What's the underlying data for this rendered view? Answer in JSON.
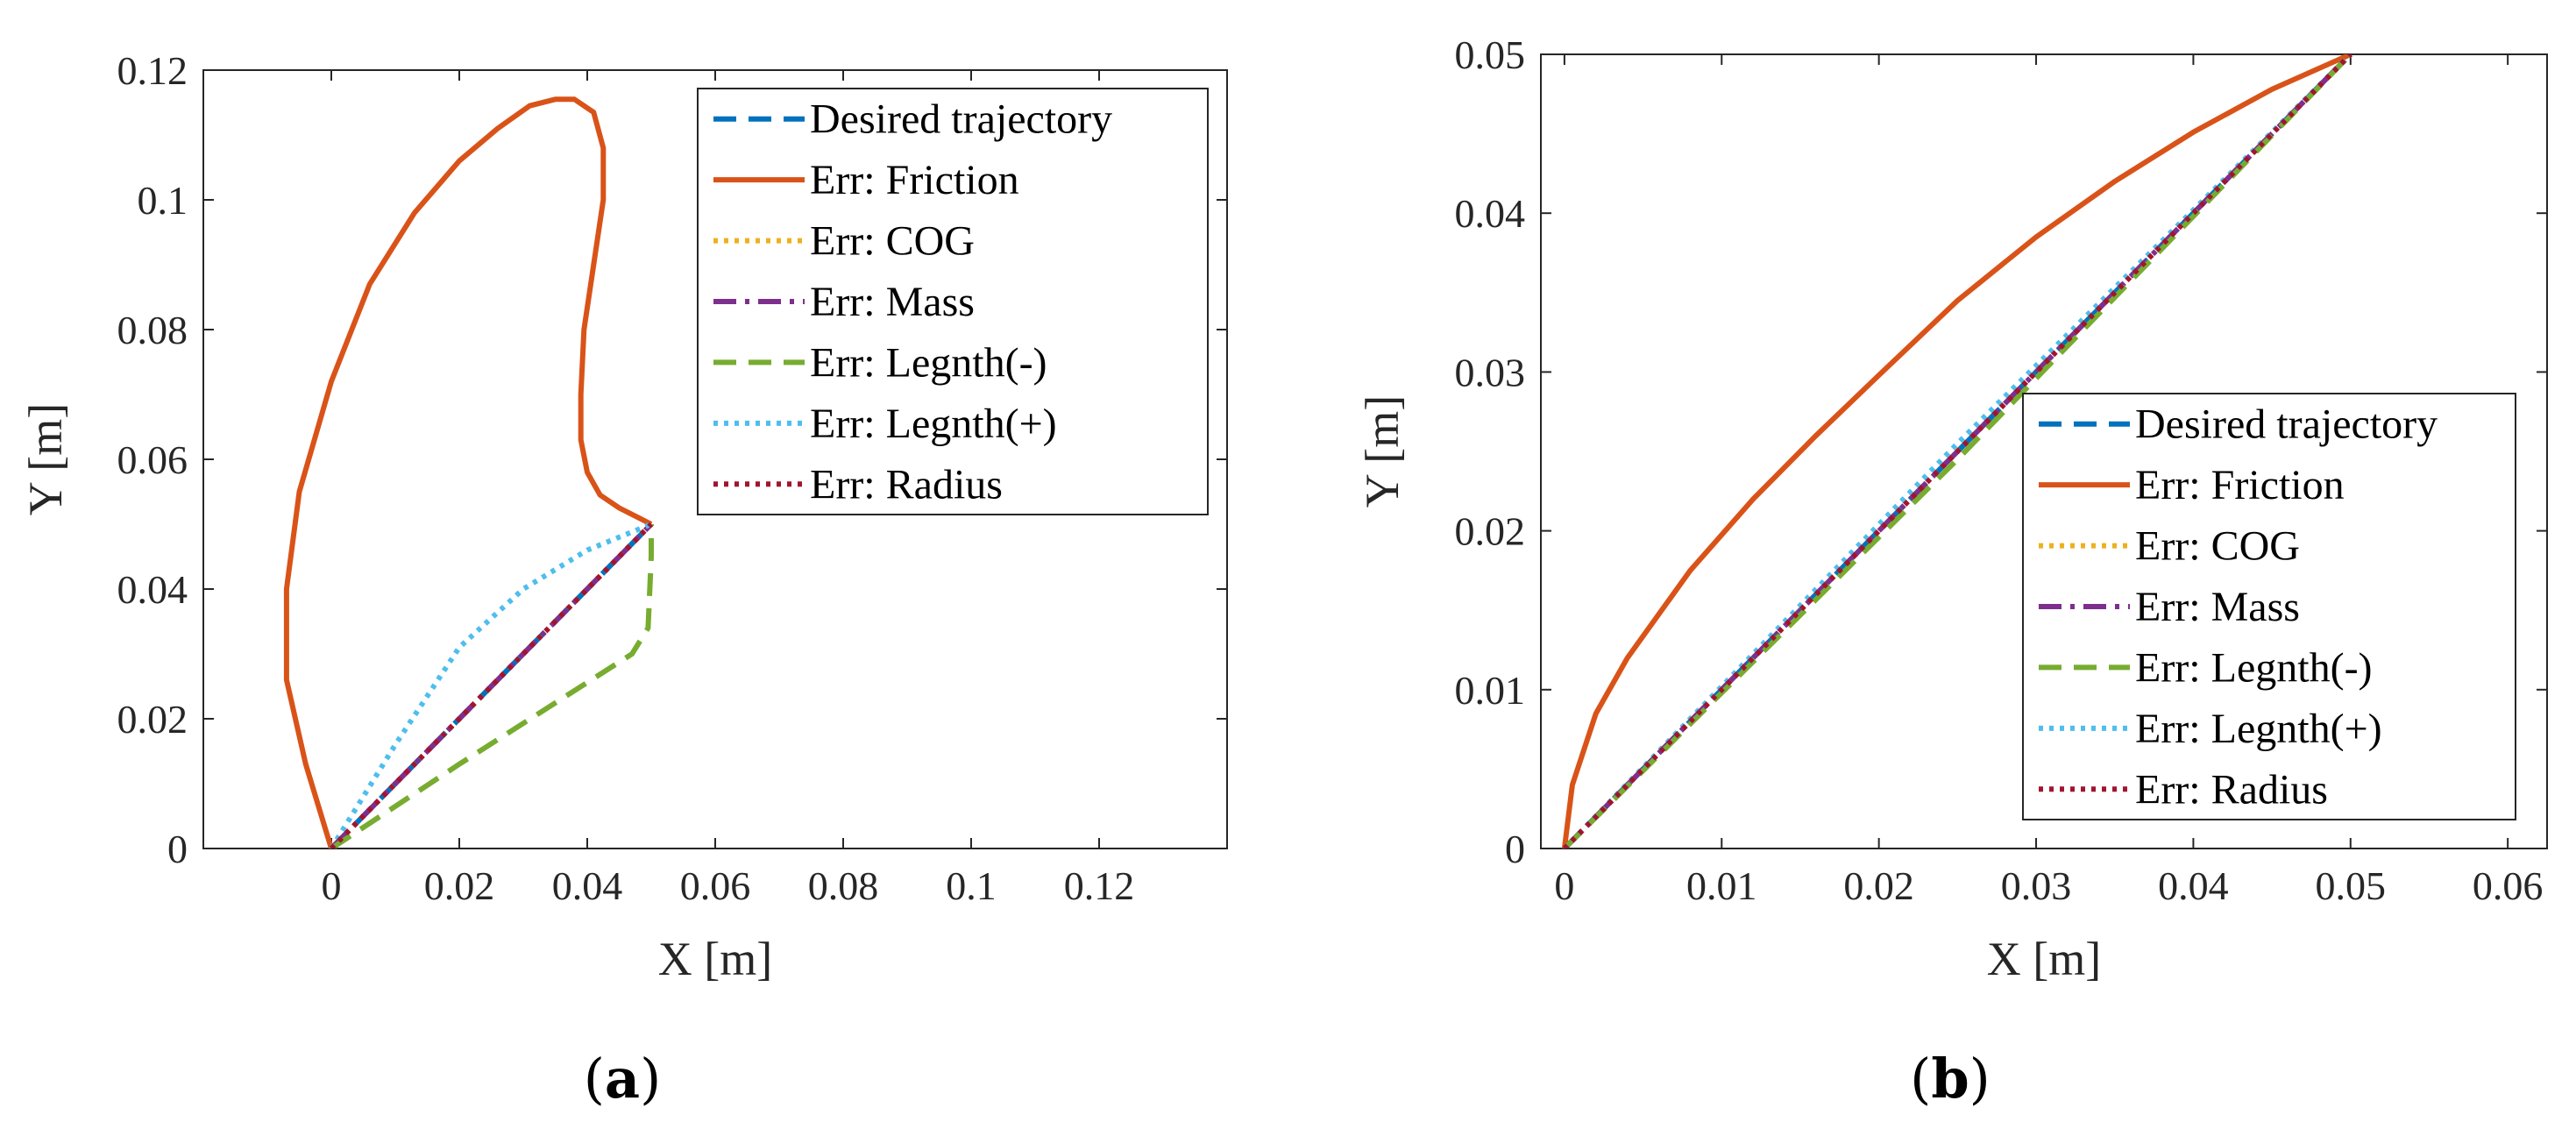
{
  "figure": {
    "captions": [
      "(a)",
      "(b)"
    ],
    "caption_letters": [
      "a",
      "b"
    ]
  },
  "colors": {
    "desired": "#0072BD",
    "friction": "#D95319",
    "cog": "#EDB120",
    "mass": "#7E2F8E",
    "length_minus": "#77AC30",
    "length_plus": "#4DBEEE",
    "radius": "#A2142F"
  },
  "chart_data": [
    {
      "type": "line",
      "panel": "a",
      "xlabel": "X [m]",
      "ylabel": "Y [m]",
      "xlim": [
        -0.02,
        0.14
      ],
      "ylim": [
        0,
        0.12
      ],
      "xticks": [
        0,
        0.02,
        0.04,
        0.06,
        0.08,
        0.1,
        0.12
      ],
      "xtick_labels": [
        "0",
        "0.02",
        "0.04",
        "0.06",
        "0.08",
        "0.1",
        "0.12"
      ],
      "yticks": [
        0,
        0.02,
        0.04,
        0.06,
        0.08,
        0.1,
        0.12
      ],
      "ytick_labels": [
        "0",
        "0.02",
        "0.04",
        "0.06",
        "0.08",
        "0.1",
        "0.12"
      ],
      "legend_position": "top-right",
      "series": [
        {
          "name": "Desired trajectory",
          "style": "dashed",
          "color": "#0072BD",
          "x": [
            0,
            0.05
          ],
          "y": [
            0,
            0.05
          ]
        },
        {
          "name": "Err: Friction",
          "style": "solid",
          "color": "#D95319",
          "x": [
            0,
            -0.004,
            -0.007,
            -0.007,
            -0.005,
            0,
            0.006,
            0.013,
            0.02,
            0.026,
            0.031,
            0.035,
            0.038,
            0.041,
            0.0425,
            0.0425,
            0.041,
            0.0395,
            0.039,
            0.039,
            0.04,
            0.042,
            0.045,
            0.048,
            0.05
          ],
          "y": [
            0,
            0.013,
            0.026,
            0.04,
            0.055,
            0.072,
            0.087,
            0.098,
            0.106,
            0.111,
            0.1145,
            0.1155,
            0.1155,
            0.1135,
            0.108,
            0.1,
            0.09,
            0.08,
            0.07,
            0.063,
            0.058,
            0.0545,
            0.0525,
            0.051,
            0.05
          ]
        },
        {
          "name": "Err: COG",
          "style": "dotted",
          "color": "#EDB120",
          "x": [
            0,
            0.05
          ],
          "y": [
            0,
            0.05
          ]
        },
        {
          "name": "Err: Mass",
          "style": "dashdot",
          "color": "#7E2F8E",
          "x": [
            0,
            0.05
          ],
          "y": [
            0,
            0.05
          ]
        },
        {
          "name": "Err: Legnth(-)",
          "style": "dashed",
          "color": "#77AC30",
          "x": [
            0,
            0.02,
            0.047,
            0.0495,
            0.05,
            0.05
          ],
          "y": [
            0,
            0.013,
            0.03,
            0.034,
            0.045,
            0.05
          ]
        },
        {
          "name": "Err: Legnth(+)",
          "style": "dotted",
          "color": "#4DBEEE",
          "x": [
            0,
            0.01,
            0.02,
            0.03,
            0.04,
            0.05
          ],
          "y": [
            0,
            0.016,
            0.031,
            0.04,
            0.046,
            0.05
          ]
        },
        {
          "name": "Err: Radius",
          "style": "dotted",
          "color": "#A2142F",
          "x": [
            0,
            0.05
          ],
          "y": [
            0,
            0.05
          ]
        }
      ]
    },
    {
      "type": "line",
      "panel": "b",
      "xlabel": "X [m]",
      "ylabel": "Y [m]",
      "xlim": [
        -0.0015,
        0.0625
      ],
      "ylim": [
        0,
        0.05
      ],
      "xticks": [
        0,
        0.01,
        0.02,
        0.03,
        0.04,
        0.05,
        0.06
      ],
      "xtick_labels": [
        "0",
        "0.01",
        "0.02",
        "0.03",
        "0.04",
        "0.05",
        "0.06"
      ],
      "yticks": [
        0,
        0.01,
        0.02,
        0.03,
        0.04,
        0.05
      ],
      "ytick_labels": [
        "0",
        "0.01",
        "0.02",
        "0.03",
        "0.04",
        "0.05"
      ],
      "legend_position": "bottom-right",
      "series": [
        {
          "name": "Desired trajectory",
          "style": "dashed",
          "color": "#0072BD",
          "x": [
            0,
            0.05
          ],
          "y": [
            0,
            0.05
          ]
        },
        {
          "name": "Err: Friction",
          "style": "solid",
          "color": "#D95319",
          "x": [
            0,
            0.0005,
            0.002,
            0.004,
            0.008,
            0.012,
            0.016,
            0.02,
            0.025,
            0.03,
            0.035,
            0.04,
            0.045,
            0.05
          ],
          "y": [
            0,
            0.004,
            0.0085,
            0.012,
            0.0175,
            0.022,
            0.026,
            0.0298,
            0.0345,
            0.0385,
            0.042,
            0.0451,
            0.0478,
            0.05
          ]
        },
        {
          "name": "Err: COG",
          "style": "dotted",
          "color": "#EDB120",
          "x": [
            0,
            0.05
          ],
          "y": [
            0,
            0.05
          ]
        },
        {
          "name": "Err: Mass",
          "style": "dashdot",
          "color": "#7E2F8E",
          "x": [
            0,
            0.05
          ],
          "y": [
            0,
            0.05
          ]
        },
        {
          "name": "Err: Legnth(-)",
          "style": "dashed",
          "color": "#77AC30",
          "x": [
            0,
            0.025,
            0.05
          ],
          "y": [
            0,
            0.0245,
            0.05
          ]
        },
        {
          "name": "Err: Legnth(+)",
          "style": "dotted",
          "color": "#4DBEEE",
          "x": [
            0,
            0.025,
            0.05
          ],
          "y": [
            0,
            0.0255,
            0.05
          ]
        },
        {
          "name": "Err: Radius",
          "style": "dotted",
          "color": "#A2142F",
          "x": [
            0,
            0.05
          ],
          "y": [
            0,
            0.05
          ]
        }
      ]
    }
  ]
}
